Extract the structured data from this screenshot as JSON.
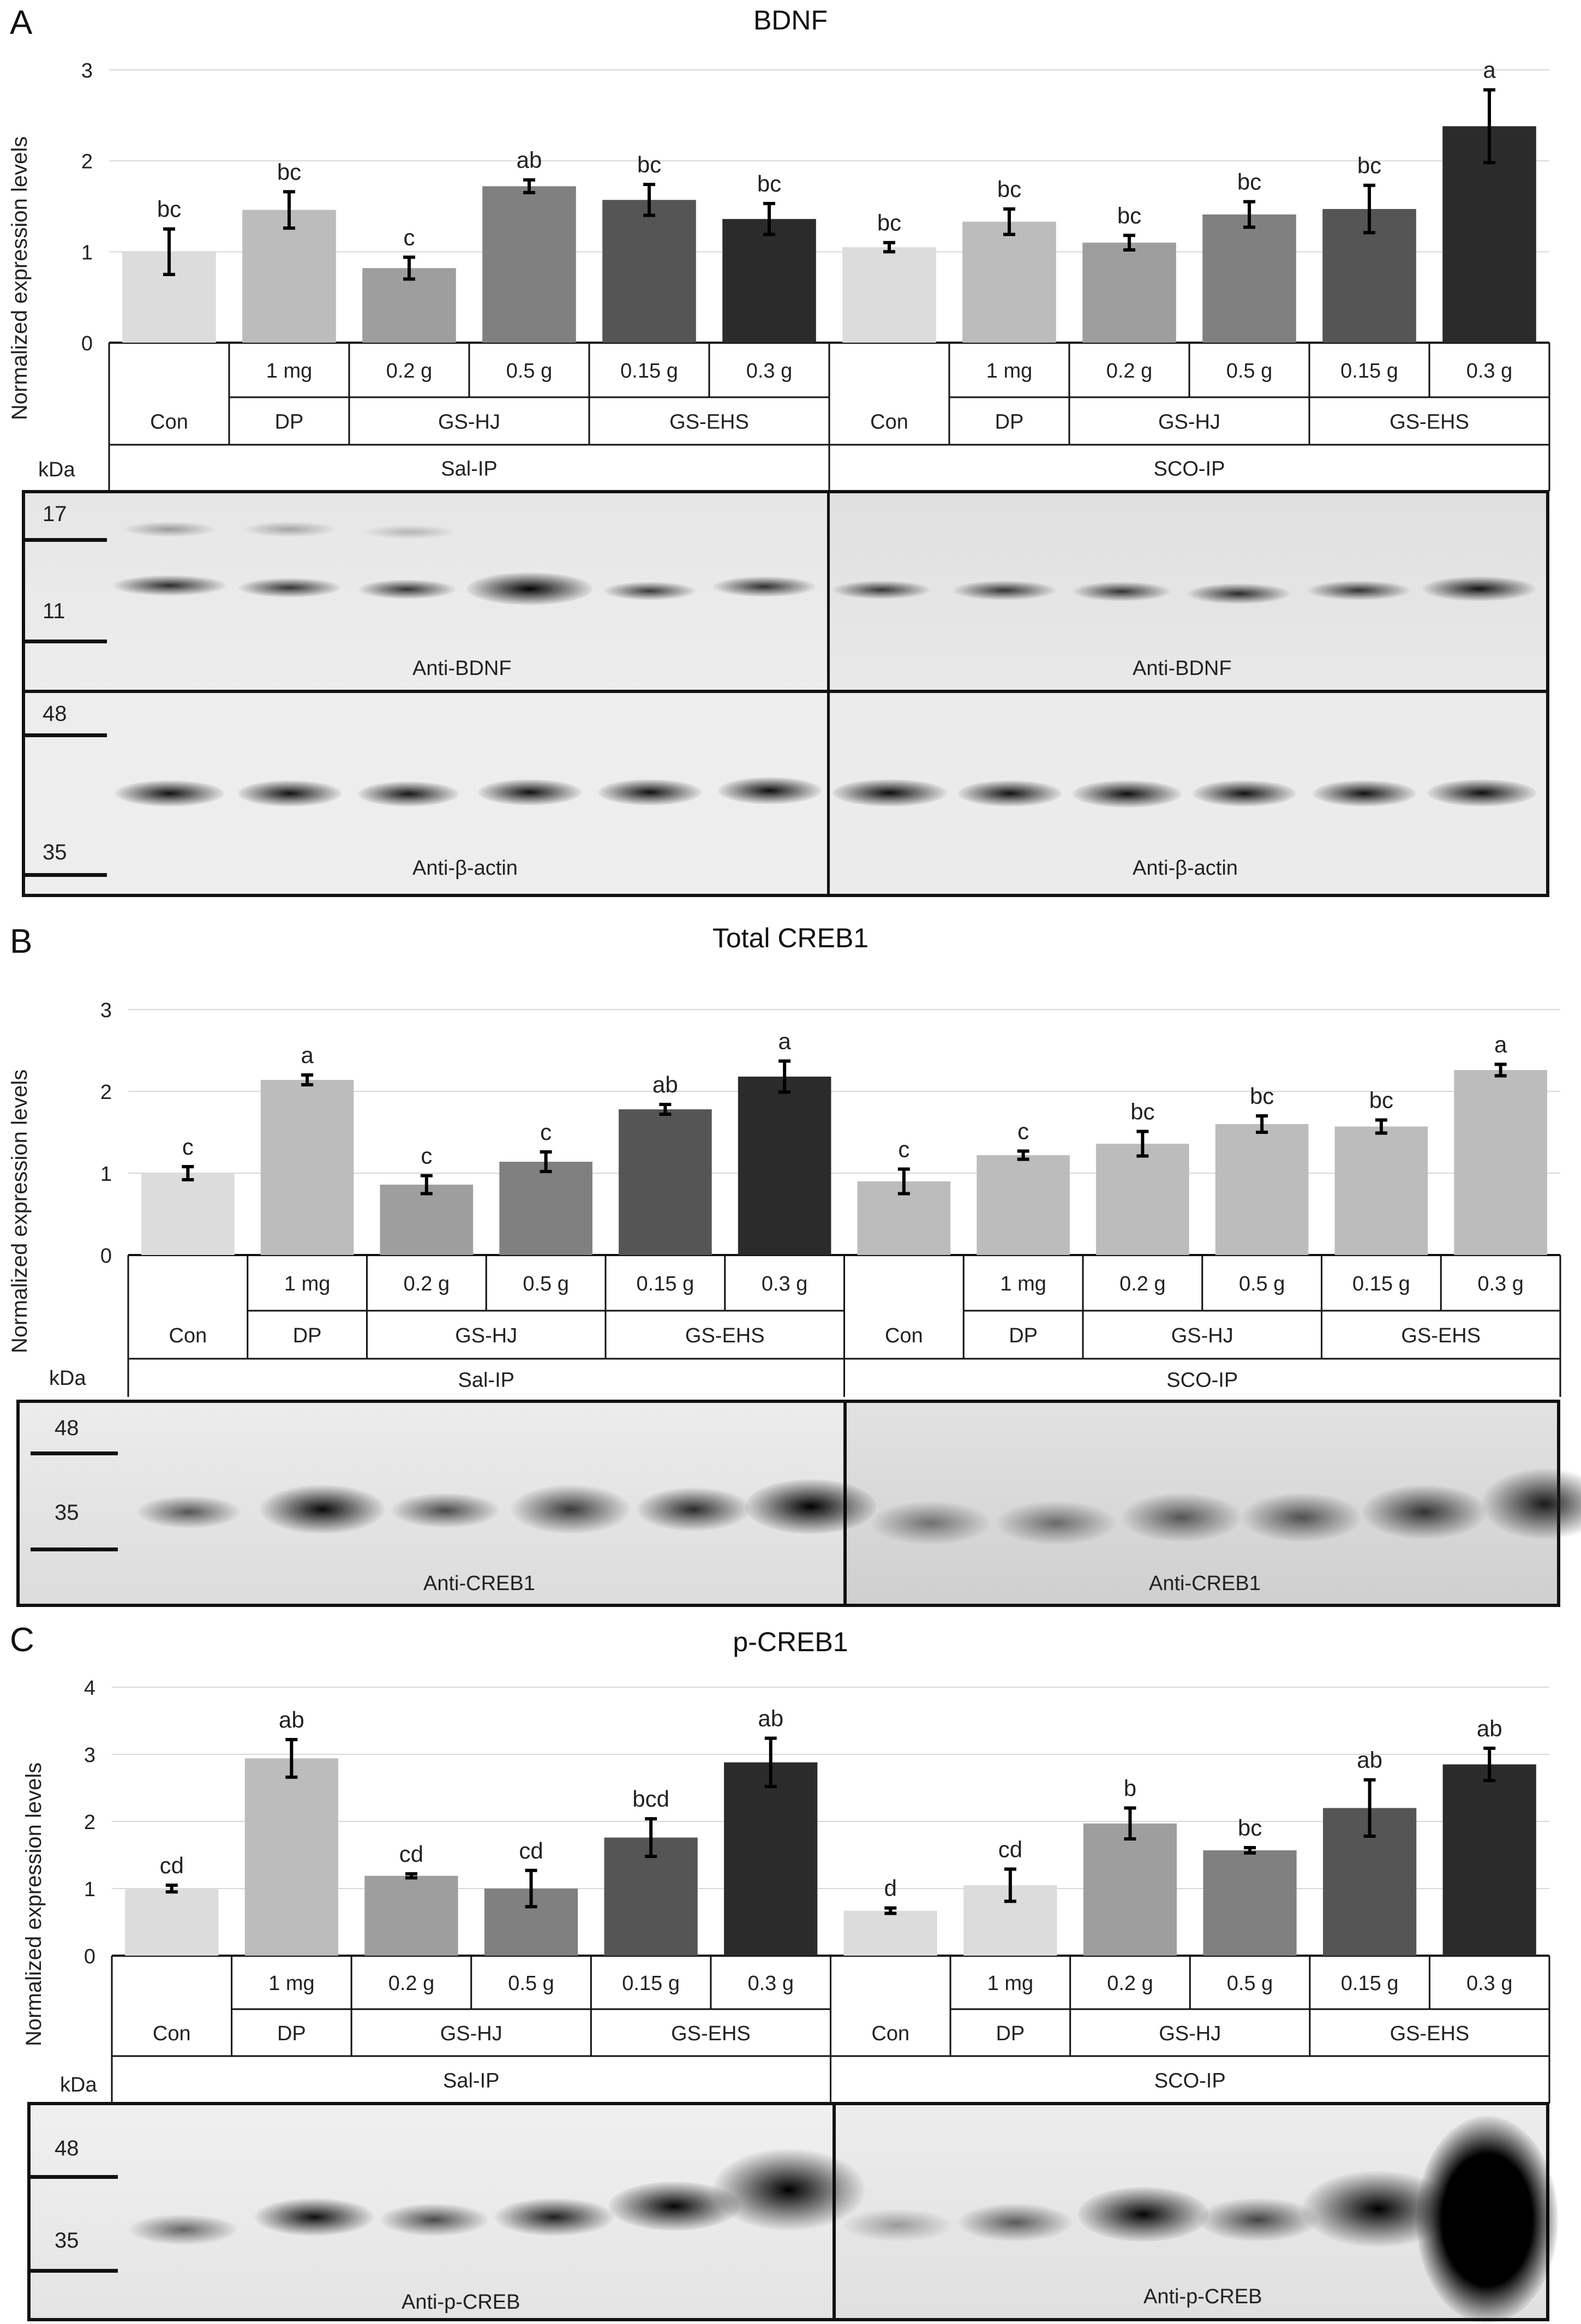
{
  "colors": {
    "con": "#dcdcdc",
    "dp": "#bcbcbc",
    "hj_low": "#9e9e9e",
    "hj_high": "#808080",
    "ehs_low": "#555555",
    "ehs_high": "#2b2b2b"
  },
  "panels": [
    {
      "id": "A",
      "letter": "A",
      "title": "BDNF",
      "ylabel": "Normalized expression levels",
      "kda_label": "kDa",
      "chart_data": {
        "type": "bar",
        "title": "BDNF",
        "ylabel": "Normalized expression levels",
        "ylim": [
          0,
          3
        ],
        "yticks": [
          0,
          1,
          2,
          3
        ],
        "bars": [
          {
            "group": "Sal-IP",
            "treatment": "Con",
            "dose": "",
            "value": 1.0,
            "err": 0.25,
            "letter": "bc",
            "shade": "con"
          },
          {
            "group": "Sal-IP",
            "treatment": "DP",
            "dose": "1 mg",
            "value": 1.46,
            "err": 0.2,
            "letter": "bc",
            "shade": "dp"
          },
          {
            "group": "Sal-IP",
            "treatment": "GS-HJ",
            "dose": "0.2 g",
            "value": 0.82,
            "err": 0.12,
            "letter": "c",
            "shade": "hj_low"
          },
          {
            "group": "Sal-IP",
            "treatment": "GS-HJ",
            "dose": "0.5 g",
            "value": 1.72,
            "err": 0.07,
            "letter": "ab",
            "shade": "hj_high"
          },
          {
            "group": "Sal-IP",
            "treatment": "GS-EHS",
            "dose": "0.15 g",
            "value": 1.57,
            "err": 0.17,
            "letter": "bc",
            "shade": "ehs_low"
          },
          {
            "group": "Sal-IP",
            "treatment": "GS-EHS",
            "dose": "0.3 g",
            "value": 1.36,
            "err": 0.17,
            "letter": "bc",
            "shade": "ehs_high"
          },
          {
            "group": "SCO-IP",
            "treatment": "Con",
            "dose": "",
            "value": 1.05,
            "err": 0.05,
            "letter": "bc",
            "shade": "con"
          },
          {
            "group": "SCO-IP",
            "treatment": "DP",
            "dose": "1 mg",
            "value": 1.33,
            "err": 0.14,
            "letter": "bc",
            "shade": "dp"
          },
          {
            "group": "SCO-IP",
            "treatment": "GS-HJ",
            "dose": "0.2 g",
            "value": 1.1,
            "err": 0.08,
            "letter": "bc",
            "shade": "hj_low"
          },
          {
            "group": "SCO-IP",
            "treatment": "GS-HJ",
            "dose": "0.5 g",
            "value": 1.41,
            "err": 0.14,
            "letter": "bc",
            "shade": "hj_high"
          },
          {
            "group": "SCO-IP",
            "treatment": "GS-EHS",
            "dose": "0.15 g",
            "value": 1.47,
            "err": 0.26,
            "letter": "bc",
            "shade": "ehs_low"
          },
          {
            "group": "SCO-IP",
            "treatment": "GS-EHS",
            "dose": "0.3 g",
            "value": 2.38,
            "err": 0.4,
            "letter": "a",
            "shade": "ehs_high"
          }
        ]
      },
      "groups": [
        "Sal-IP",
        "SCO-IP"
      ],
      "blots": [
        {
          "label_left": "Anti-BDNF",
          "label_right": "Anti-BDNF",
          "markers": [
            "17",
            "11"
          ]
        },
        {
          "label_left": "Anti-β-actin",
          "label_right": "Anti-β-actin",
          "markers": [
            "48",
            "35"
          ]
        }
      ]
    },
    {
      "id": "B",
      "letter": "B",
      "title": "Total CREB1",
      "ylabel": "Normalized expression levels",
      "kda_label": "kDa",
      "chart_data": {
        "type": "bar",
        "title": "Total CREB1",
        "ylabel": "Normalized expression levels",
        "ylim": [
          0,
          3
        ],
        "yticks": [
          0,
          1,
          2,
          3
        ],
        "bars": [
          {
            "group": "Sal-IP",
            "treatment": "Con",
            "dose": "",
            "value": 1.0,
            "err": 0.08,
            "letter": "c",
            "shade": "con"
          },
          {
            "group": "Sal-IP",
            "treatment": "DP",
            "dose": "1 mg",
            "value": 2.14,
            "err": 0.06,
            "letter": "a",
            "shade": "dp"
          },
          {
            "group": "Sal-IP",
            "treatment": "GS-HJ",
            "dose": "0.2 g",
            "value": 0.86,
            "err": 0.11,
            "letter": "c",
            "shade": "hj_low"
          },
          {
            "group": "Sal-IP",
            "treatment": "GS-HJ",
            "dose": "0.5 g",
            "value": 1.14,
            "err": 0.12,
            "letter": "c",
            "shade": "hj_high"
          },
          {
            "group": "Sal-IP",
            "treatment": "GS-EHS",
            "dose": "0.15 g",
            "value": 1.78,
            "err": 0.06,
            "letter": "ab",
            "shade": "ehs_low"
          },
          {
            "group": "Sal-IP",
            "treatment": "GS-EHS",
            "dose": "0.3 g",
            "value": 2.18,
            "err": 0.19,
            "letter": "a",
            "shade": "ehs_high"
          },
          {
            "group": "SCO-IP",
            "treatment": "Con",
            "dose": "",
            "value": 0.9,
            "err": 0.15,
            "letter": "c",
            "shade": "dp"
          },
          {
            "group": "SCO-IP",
            "treatment": "DP",
            "dose": "1 mg",
            "value": 1.22,
            "err": 0.05,
            "letter": "c",
            "shade": "dp"
          },
          {
            "group": "SCO-IP",
            "treatment": "GS-HJ",
            "dose": "0.2 g",
            "value": 1.36,
            "err": 0.15,
            "letter": "bc",
            "shade": "dp"
          },
          {
            "group": "SCO-IP",
            "treatment": "GS-HJ",
            "dose": "0.5 g",
            "value": 1.6,
            "err": 0.1,
            "letter": "bc",
            "shade": "dp"
          },
          {
            "group": "SCO-IP",
            "treatment": "GS-EHS",
            "dose": "0.15 g",
            "value": 1.57,
            "err": 0.08,
            "letter": "bc",
            "shade": "dp"
          },
          {
            "group": "SCO-IP",
            "treatment": "GS-EHS",
            "dose": "0.3 g",
            "value": 2.26,
            "err": 0.07,
            "letter": "a",
            "shade": "dp"
          }
        ]
      },
      "groups": [
        "Sal-IP",
        "SCO-IP"
      ],
      "blots": [
        {
          "label_left": "Anti-CREB1",
          "label_right": "Anti-CREB1",
          "markers": [
            "48",
            "35"
          ]
        }
      ]
    },
    {
      "id": "C",
      "letter": "C",
      "title": "p-CREB1",
      "ylabel": "Normalized expression levels",
      "kda_label": "kDa",
      "chart_data": {
        "type": "bar",
        "title": "p-CREB1",
        "ylabel": "Normalized expression levels",
        "ylim": [
          0,
          4
        ],
        "yticks": [
          0,
          1,
          2,
          3,
          4
        ],
        "bars": [
          {
            "group": "Sal-IP",
            "treatment": "Con",
            "dose": "",
            "value": 1.0,
            "err": 0.05,
            "letter": "cd",
            "shade": "con"
          },
          {
            "group": "Sal-IP",
            "treatment": "DP",
            "dose": "1 mg",
            "value": 2.94,
            "err": 0.28,
            "letter": "ab",
            "shade": "dp"
          },
          {
            "group": "Sal-IP",
            "treatment": "GS-HJ",
            "dose": "0.2 g",
            "value": 1.19,
            "err": 0.03,
            "letter": "cd",
            "shade": "hj_low"
          },
          {
            "group": "Sal-IP",
            "treatment": "GS-HJ",
            "dose": "0.5 g",
            "value": 1.0,
            "err": 0.27,
            "letter": "cd",
            "shade": "hj_high"
          },
          {
            "group": "Sal-IP",
            "treatment": "GS-EHS",
            "dose": "0.15 g",
            "value": 1.76,
            "err": 0.28,
            "letter": "bcd",
            "shade": "ehs_low"
          },
          {
            "group": "Sal-IP",
            "treatment": "GS-EHS",
            "dose": "0.3 g",
            "value": 2.88,
            "err": 0.36,
            "letter": "ab",
            "shade": "ehs_high"
          },
          {
            "group": "SCO-IP",
            "treatment": "Con",
            "dose": "",
            "value": 0.67,
            "err": 0.04,
            "letter": "d",
            "shade": "con"
          },
          {
            "group": "SCO-IP",
            "treatment": "DP",
            "dose": "1 mg",
            "value": 1.05,
            "err": 0.24,
            "letter": "cd",
            "shade": "con"
          },
          {
            "group": "SCO-IP",
            "treatment": "GS-HJ",
            "dose": "0.2 g",
            "value": 1.97,
            "err": 0.23,
            "letter": "b",
            "shade": "hj_low"
          },
          {
            "group": "SCO-IP",
            "treatment": "GS-HJ",
            "dose": "0.5 g",
            "value": 1.57,
            "err": 0.04,
            "letter": "bc",
            "shade": "hj_high"
          },
          {
            "group": "SCO-IP",
            "treatment": "GS-EHS",
            "dose": "0.15 g",
            "value": 2.2,
            "err": 0.42,
            "letter": "ab",
            "shade": "ehs_low"
          },
          {
            "group": "SCO-IP",
            "treatment": "GS-EHS",
            "dose": "0.3 g",
            "value": 2.85,
            "err": 0.24,
            "letter": "ab",
            "shade": "ehs_high"
          }
        ]
      },
      "groups": [
        "Sal-IP",
        "SCO-IP"
      ],
      "blots": [
        {
          "label_left": "Anti-p-CREB",
          "label_right": "Anti-p-CREB",
          "markers": [
            "48",
            "35"
          ]
        }
      ]
    }
  ]
}
